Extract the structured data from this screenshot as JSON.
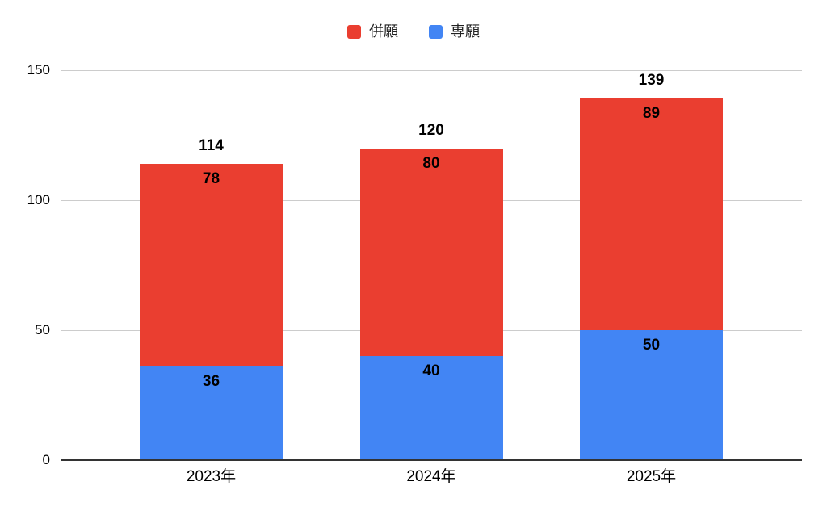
{
  "chart_data": {
    "type": "bar",
    "stacked": true,
    "title": "",
    "xlabel": "",
    "ylabel": "",
    "categories": [
      "2023年",
      "2024年",
      "2025年"
    ],
    "series": [
      {
        "name": "併願",
        "color": "#EA3E30",
        "values": [
          78,
          80,
          89
        ]
      },
      {
        "name": "専願",
        "color": "#4285F4",
        "values": [
          36,
          40,
          50
        ]
      }
    ],
    "stack_order_bottom_to_top": [
      "専願",
      "併願"
    ],
    "totals": [
      114,
      120,
      139
    ],
    "y_ticks": [
      0,
      50,
      100,
      150
    ],
    "ylim": [
      0,
      150
    ],
    "grid": true,
    "legend_position": "top",
    "value_labels_shown": true
  },
  "legend": {
    "items": [
      {
        "label": "併願",
        "color": "#EA3E30"
      },
      {
        "label": "専願",
        "color": "#4285F4"
      }
    ]
  },
  "colors": {
    "background": "#ffffff",
    "gridline": "#cccccc",
    "axis_line": "#333333",
    "text": "#000000"
  }
}
